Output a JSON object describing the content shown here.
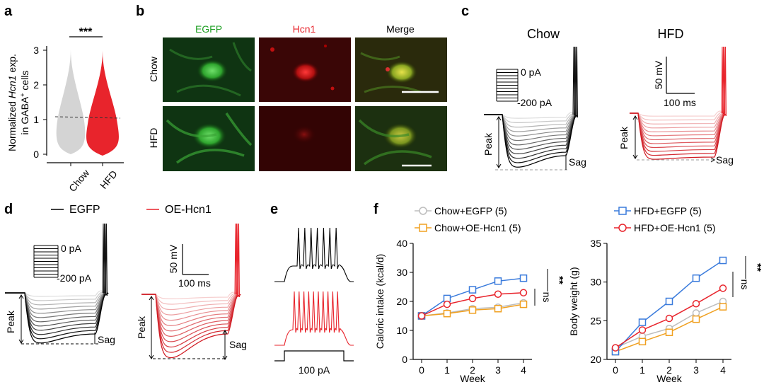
{
  "panels": {
    "a": "a",
    "b": "b",
    "c": "c",
    "d": "d",
    "e": "e",
    "f": "f"
  },
  "colors": {
    "black": "#000000",
    "red": "#e8242c",
    "gray": "#bdbdbd",
    "green": "#1fa024",
    "blue": "#3a7bdc",
    "orange": "#f0a020"
  },
  "panel_a": {
    "ylabel": "Normalized Hcn1 exp. in GABA⁺ cells",
    "ylabel_part1": "Normalized ",
    "ylabel_gene": "Hcn1",
    "ylabel_part2": " exp.",
    "ylabel_line2a": "in GABA",
    "ylabel_line2sup": "+",
    "ylabel_line2b": " cells",
    "yticks": [
      "0",
      "1",
      "2",
      "3"
    ],
    "groups": [
      "Chow",
      "HFD"
    ],
    "significance": "***"
  },
  "panel_b": {
    "columns": [
      "EGFP",
      "Hcn1",
      "Merge"
    ],
    "rows": [
      "Chow",
      "HFD"
    ]
  },
  "panel_c": {
    "titles": [
      "Chow",
      "HFD"
    ],
    "step_top": "0 pA",
    "step_bottom": "-200 pA",
    "scale_v": "50 mV",
    "scale_t": "100 ms",
    "peak": "Peak",
    "sag": "Sag"
  },
  "panel_d": {
    "legend": [
      "EGFP",
      "OE-Hcn1"
    ],
    "step_top": "0 pA",
    "step_bottom": "-200 pA",
    "scale_v": "50 mV",
    "scale_t": "100 ms",
    "peak": "Peak",
    "sag": "Sag"
  },
  "panel_e": {
    "current": "100 pA"
  },
  "chart_data": [
    {
      "type": "line",
      "xlabel": "Week",
      "ylabel": "Caloric intake (kcal/d)",
      "x": [
        0,
        1,
        2,
        3,
        4
      ],
      "ylim": [
        0,
        40
      ],
      "yticks": [
        0,
        10,
        20,
        30,
        40
      ],
      "series": [
        {
          "name": "Chow+EGFP (5)",
          "color": "#bdbdbd",
          "marker": "circle",
          "values": [
            15,
            16,
            17.5,
            18,
            19.5
          ]
        },
        {
          "name": "Chow+OE-Hcn1 (5)",
          "color": "#f0a020",
          "marker": "square",
          "values": [
            15,
            15.8,
            17,
            17.5,
            19
          ]
        },
        {
          "name": "HFD+EGFP (5)",
          "color": "#3a7bdc",
          "marker": "square",
          "values": [
            15,
            21,
            24,
            27,
            28
          ]
        },
        {
          "name": "HFD+OE-Hcn1 (5)",
          "color": "#e8242c",
          "marker": "circle",
          "values": [
            15,
            19,
            21,
            22.5,
            23
          ]
        }
      ],
      "significance": {
        "inner": "ns",
        "outer": "**"
      }
    },
    {
      "type": "line",
      "xlabel": "Week",
      "ylabel": "Body weight (g)",
      "x": [
        0,
        1,
        2,
        3,
        4
      ],
      "ylim": [
        20,
        35
      ],
      "yticks": [
        20,
        25,
        30,
        35
      ],
      "series": [
        {
          "name": "Chow+EGFP (5)",
          "color": "#bdbdbd",
          "marker": "circle",
          "values": [
            21.5,
            23,
            24,
            26,
            27.5
          ]
        },
        {
          "name": "Chow+OE-Hcn1 (5)",
          "color": "#f0a020",
          "marker": "square",
          "values": [
            21,
            22.3,
            23.5,
            25.2,
            26.8
          ]
        },
        {
          "name": "HFD+EGFP (5)",
          "color": "#3a7bdc",
          "marker": "square",
          "values": [
            21,
            24.8,
            27.5,
            30.5,
            32.8
          ]
        },
        {
          "name": "HFD+OE-Hcn1 (5)",
          "color": "#e8242c",
          "marker": "circle",
          "values": [
            21.5,
            23.8,
            25.3,
            27.2,
            29.2
          ]
        }
      ],
      "significance": {
        "inner": "ns",
        "outer": "**"
      }
    }
  ]
}
